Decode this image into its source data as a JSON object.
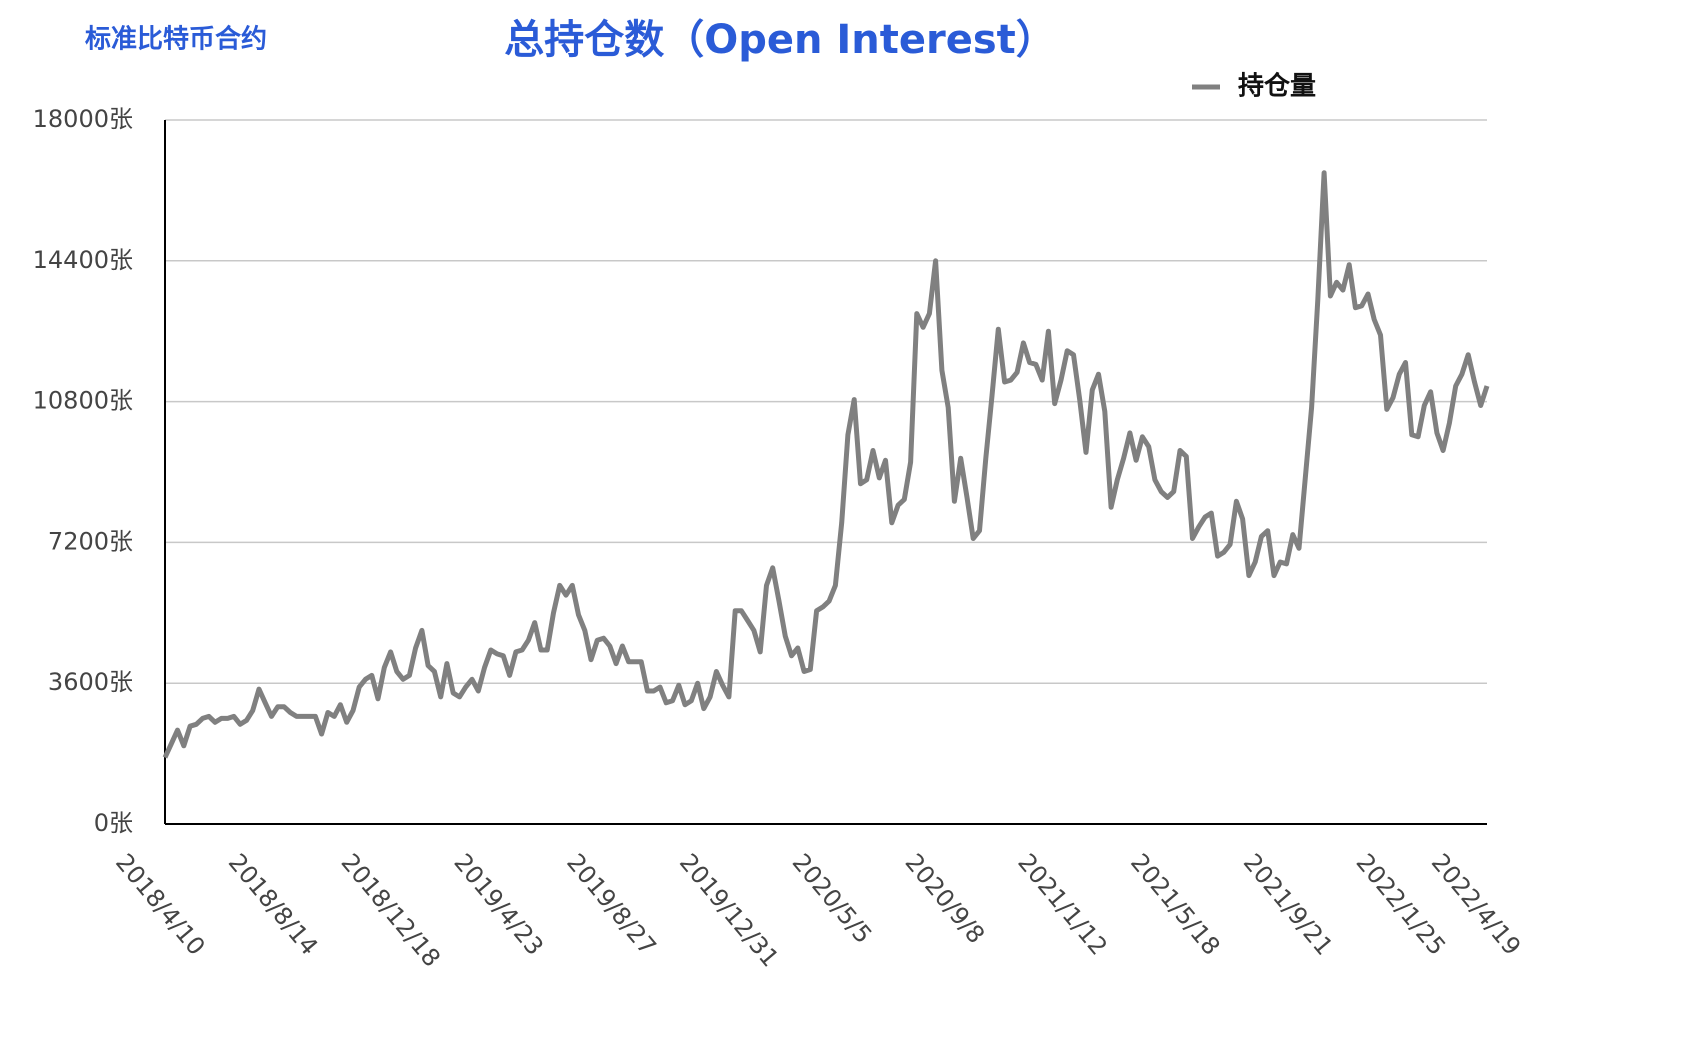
{
  "chart_data": {
    "type": "line",
    "title": "总持仓数（Open Interest）",
    "subtitle": "标准比特币合约",
    "categories": [
      "2018/4/10",
      null,
      null,
      null,
      null,
      null,
      null,
      null,
      null,
      null,
      null,
      null,
      null,
      null,
      null,
      null,
      null,
      null,
      "2018/8/14",
      null,
      null,
      null,
      null,
      null,
      null,
      null,
      null,
      null,
      null,
      null,
      null,
      null,
      null,
      null,
      null,
      null,
      "2018/12/18",
      null,
      null,
      null,
      null,
      null,
      null,
      null,
      null,
      null,
      null,
      null,
      null,
      null,
      null,
      null,
      null,
      null,
      "2019/4/23",
      null,
      null,
      null,
      null,
      null,
      null,
      null,
      null,
      null,
      null,
      null,
      null,
      null,
      null,
      null,
      null,
      null,
      "2019/8/27",
      null,
      null,
      null,
      null,
      null,
      null,
      null,
      null,
      null,
      null,
      null,
      null,
      null,
      null,
      null,
      null,
      null,
      "2019/12/31",
      null,
      null,
      null,
      null,
      null,
      null,
      null,
      null,
      null,
      null,
      null,
      null,
      null,
      null,
      null,
      null,
      null,
      "2020/5/5",
      null,
      null,
      null,
      null,
      null,
      null,
      null,
      null,
      null,
      null,
      null,
      null,
      null,
      null,
      null,
      null,
      null,
      "2020/9/8",
      null,
      null,
      null,
      null,
      null,
      null,
      null,
      null,
      null,
      null,
      null,
      null,
      null,
      null,
      null,
      null,
      null,
      "2021/1/12",
      null,
      null,
      null,
      null,
      null,
      null,
      null,
      null,
      null,
      null,
      null,
      null,
      null,
      null,
      null,
      null,
      null,
      "2021/5/18",
      null,
      null,
      null,
      null,
      null,
      null,
      null,
      null,
      null,
      null,
      null,
      null,
      null,
      null,
      null,
      null,
      null,
      "2021/9/21",
      null,
      null,
      null,
      null,
      null,
      null,
      null,
      null,
      null,
      null,
      null,
      null,
      null,
      null,
      null,
      null,
      null,
      "2022/1/25",
      null,
      null,
      null,
      null,
      null,
      null,
      null,
      null,
      null,
      null,
      null,
      "2022/4/19",
      null
    ],
    "series": [
      {
        "name": "持仓量",
        "color": "#808080",
        "values": [
          1700,
          2050,
          2400,
          2000,
          2500,
          2550,
          2700,
          2750,
          2600,
          2700,
          2700,
          2750,
          2550,
          2650,
          2900,
          3450,
          3100,
          2750,
          3000,
          3000,
          2850,
          2750,
          2750,
          2750,
          2750,
          2300,
          2850,
          2750,
          3050,
          2600,
          2900,
          3500,
          3700,
          3800,
          3200,
          4000,
          4400,
          3900,
          3700,
          3800,
          4500,
          4950,
          4050,
          3900,
          3250,
          4100,
          3350,
          3250,
          3500,
          3700,
          3400,
          4000,
          4450,
          4350,
          4300,
          3800,
          4400,
          4450,
          4700,
          5150,
          4450,
          4450,
          5400,
          6100,
          5850,
          6100,
          5350,
          4950,
          4200,
          4700,
          4750,
          4550,
          4100,
          4550,
          4150,
          4150,
          4150,
          3400,
          3400,
          3500,
          3100,
          3150,
          3550,
          3050,
          3150,
          3600,
          2950,
          3250,
          3900,
          3550,
          3250,
          5450,
          5450,
          5200,
          4950,
          4400,
          6100,
          6550,
          5700,
          4800,
          4300,
          4500,
          3900,
          3950,
          5450,
          5550,
          5700,
          6100,
          7700,
          9950,
          10850,
          8700,
          8800,
          9550,
          8850,
          9300,
          7700,
          8150,
          8300,
          9250,
          13050,
          12700,
          13050,
          14400,
          11600,
          10650,
          8250,
          9350,
          8350,
          7300,
          7500,
          9350,
          10950,
          12650,
          11300,
          11350,
          11550,
          12300,
          11800,
          11750,
          11350,
          12600,
          10750,
          11350,
          12100,
          12000,
          10850,
          9500,
          11100,
          11500,
          10550,
          8100,
          8800,
          9350,
          10000,
          9300,
          9900,
          9650,
          8800,
          8500,
          8350,
          8500,
          9550,
          9400,
          7300,
          7600,
          7850,
          7950,
          6850,
          6950,
          7150,
          8250,
          7800,
          6350,
          6700,
          7350,
          7500,
          6350,
          6700,
          6650,
          7400,
          7050,
          8850,
          10650,
          13400,
          16650,
          13500,
          13850,
          13650,
          14300,
          13200,
          13250,
          13550,
          12900,
          12500,
          10600,
          10900,
          11500,
          11800,
          9950,
          9900,
          10700,
          11050,
          10000,
          9550,
          10250,
          11200,
          11500,
          12000,
          11300,
          10700,
          11200
        ]
      }
    ],
    "ylim": [
      0,
      18000
    ],
    "yticks": [
      {
        "value": 0,
        "label": "0张"
      },
      {
        "value": 3600,
        "label": "3600张"
      },
      {
        "value": 7200,
        "label": "7200张"
      },
      {
        "value": 10800,
        "label": "10800张"
      },
      {
        "value": 14400,
        "label": "14400张"
      },
      {
        "value": 18000,
        "label": "18000张"
      }
    ],
    "grid": true,
    "legend": "top-right"
  }
}
